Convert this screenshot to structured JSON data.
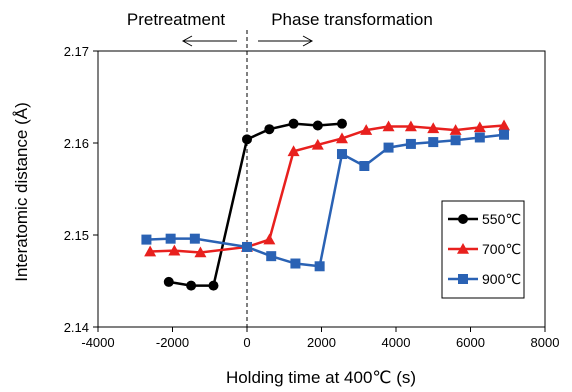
{
  "chart_data": {
    "type": "line",
    "title": "",
    "xlabel": "Holding time at 400℃ (s)",
    "ylabel": "Interatomic distance (Å)",
    "xlim": [
      -4000,
      8000
    ],
    "ylim": [
      2.14,
      2.17
    ],
    "xticks": [
      -4000,
      -2000,
      0,
      2000,
      4000,
      6000,
      8000
    ],
    "xtick_labels": [
      "-4000",
      "-2000",
      "0",
      "2000",
      "4000",
      "6000",
      "8000"
    ],
    "yticks": [
      2.14,
      2.15,
      2.16,
      2.17
    ],
    "ytick_labels": [
      "2.14",
      "2.15",
      "2.16",
      "2.17"
    ],
    "grid": false,
    "legend_position": "lower-right",
    "annotations": {
      "left": "Pretreatment",
      "right": "Phase transformation",
      "divider_x": 0
    },
    "series": [
      {
        "name": "550℃",
        "color": "#000000",
        "marker": "circle",
        "x": [
          -2100,
          -1500,
          -900,
          0,
          600,
          1250,
          1900,
          2550
        ],
        "y": [
          2.1449,
          2.1445,
          2.1445,
          2.1604,
          2.1615,
          2.1621,
          2.1619,
          2.1621
        ]
      },
      {
        "name": "700℃",
        "color": "#e8201e",
        "marker": "triangle",
        "x": [
          -2600,
          -1950,
          -1250,
          0,
          600,
          1250,
          1900,
          2550,
          3200,
          3800,
          4400,
          5000,
          5600,
          6250,
          6900
        ],
        "y": [
          2.1482,
          2.1483,
          2.1481,
          2.1487,
          2.1495,
          2.1591,
          2.1598,
          2.1605,
          2.1614,
          2.1618,
          2.1618,
          2.1616,
          2.1614,
          2.1617,
          2.1619
        ]
      },
      {
        "name": "900℃",
        "color": "#2a62b4",
        "marker": "square",
        "x": [
          -2700,
          -2050,
          -1400,
          0,
          650,
          1300,
          1950,
          2550,
          3150,
          3800,
          4400,
          5000,
          5600,
          6250,
          6900
        ],
        "y": [
          2.1495,
          2.1496,
          2.1496,
          2.1487,
          2.1477,
          2.1469,
          2.1466,
          2.1588,
          2.1575,
          2.1595,
          2.1599,
          2.1601,
          2.1603,
          2.1606,
          2.1609
        ]
      }
    ]
  }
}
